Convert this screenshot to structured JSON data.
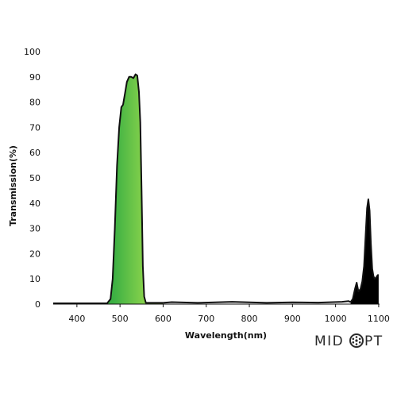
{
  "chart_data": {
    "type": "area",
    "xlabel": "Wavelength(nm)",
    "ylabel": "Transmission(%)",
    "xlim": [
      345,
      1102
    ],
    "ylim": [
      0,
      100
    ],
    "x_ticks": [
      400,
      500,
      600,
      700,
      800,
      900,
      1000,
      1100
    ],
    "y_ticks": [
      0,
      10,
      20,
      30,
      40,
      50,
      60,
      70,
      80,
      90,
      100
    ],
    "grid": false,
    "series": [
      {
        "fill": "green-gradient",
        "points": [
          [
            345,
            0.3
          ],
          [
            470,
            0.3
          ],
          [
            478,
            2
          ],
          [
            483,
            10
          ],
          [
            488,
            30
          ],
          [
            493,
            55
          ],
          [
            498,
            70
          ],
          [
            503,
            78
          ],
          [
            507,
            79
          ],
          [
            512,
            84
          ],
          [
            516,
            88
          ],
          [
            521,
            90
          ],
          [
            526,
            90
          ],
          [
            531,
            89.5
          ],
          [
            536,
            91
          ],
          [
            540,
            90.5
          ],
          [
            544,
            84
          ],
          [
            547,
            72
          ],
          [
            550,
            45
          ],
          [
            553,
            15
          ],
          [
            556,
            3
          ],
          [
            560,
            0.5
          ],
          [
            600,
            0.5
          ]
        ]
      },
      {
        "fill": "baseline",
        "points": [
          [
            600,
            0.5
          ],
          [
            620,
            0.8
          ],
          [
            680,
            0.5
          ],
          [
            760,
            0.9
          ],
          [
            840,
            0.5
          ],
          [
            900,
            0.7
          ],
          [
            960,
            0.6
          ],
          [
            1015,
            0.9
          ],
          [
            1030,
            1.2
          ],
          [
            1035,
            0.8
          ]
        ]
      },
      {
        "fill": "black",
        "points": [
          [
            1035,
            0.8
          ],
          [
            1040,
            2
          ],
          [
            1045,
            6
          ],
          [
            1049,
            8.5
          ],
          [
            1053,
            5
          ],
          [
            1058,
            6
          ],
          [
            1062,
            9
          ],
          [
            1066,
            15
          ],
          [
            1070,
            28
          ],
          [
            1073,
            38
          ],
          [
            1076,
            41.5
          ],
          [
            1079,
            37
          ],
          [
            1082,
            24
          ],
          [
            1085,
            14
          ],
          [
            1088,
            11
          ],
          [
            1091,
            10
          ],
          [
            1094,
            10.5
          ],
          [
            1096,
            11
          ],
          [
            1098,
            11.5
          ],
          [
            1100,
            11.5
          ]
        ]
      }
    ]
  },
  "logo": {
    "text": "MID",
    "text2": "PT"
  },
  "colors": {
    "line": "#111111",
    "green_dark": "#1f8a2e",
    "green_light": "#a8e04a",
    "black_fill": "#000000"
  }
}
